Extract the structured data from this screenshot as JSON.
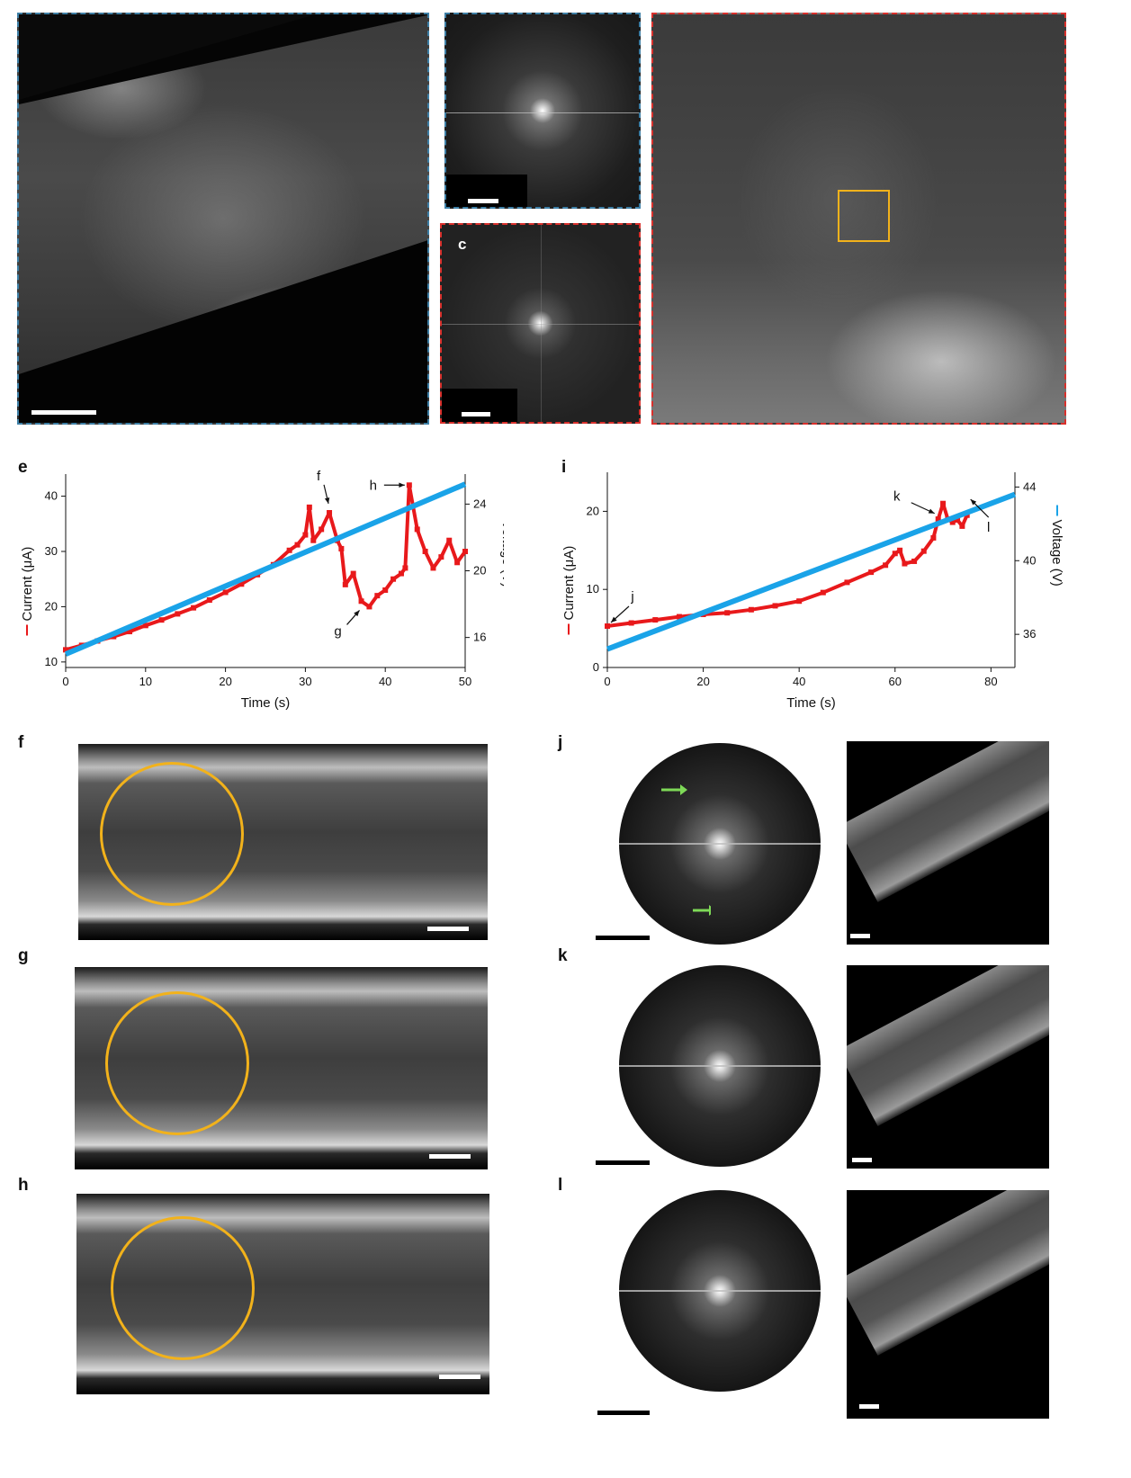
{
  "panel_labels": {
    "e": "e",
    "i": "i",
    "f": "f",
    "g": "g",
    "h": "h",
    "j": "j",
    "k": "k",
    "l": "l",
    "c": "c"
  },
  "colors": {
    "current": "#e8191b",
    "voltage": "#1aa3e8",
    "roi": "#f2b21b",
    "arrow_green": "#7ed957",
    "border_blue": "#3d7fa6",
    "border_red": "#d9302c"
  },
  "chart_data": [
    {
      "type": "line",
      "panel": "e",
      "xlabel": "Time (s)",
      "ylabel": "Current (μA)",
      "y2label": "Voltage (V)",
      "xlim": [
        0,
        50
      ],
      "ylim": [
        9,
        44
      ],
      "y2lim": [
        14.2,
        25.8
      ],
      "xticks": [
        "0",
        "10",
        "20",
        "30",
        "40",
        "50"
      ],
      "yticks": [
        "10",
        "20",
        "30",
        "40"
      ],
      "y2ticks": [
        "16",
        "20",
        "24"
      ],
      "series": [
        {
          "name": "Current",
          "axis": "left",
          "x": [
            0,
            2,
            4,
            6,
            8,
            10,
            12,
            14,
            16,
            18,
            20,
            22,
            24,
            26,
            28,
            29,
            30,
            30.5,
            31,
            32,
            33,
            34,
            34.5,
            35,
            36,
            37,
            38,
            39,
            40,
            41,
            42,
            42.5,
            43,
            44,
            45,
            46,
            47,
            48,
            49,
            50
          ],
          "y": [
            12.2,
            13,
            13.8,
            14.6,
            15.5,
            16.6,
            17.6,
            18.7,
            19.8,
            21.2,
            22.6,
            24.1,
            25.8,
            27.6,
            30.2,
            31.2,
            33,
            38,
            32,
            34,
            37,
            32,
            30.5,
            24,
            26,
            21,
            20,
            22,
            23,
            25,
            26,
            27,
            42,
            34,
            30,
            27,
            29,
            32,
            28,
            30
          ]
        },
        {
          "name": "Voltage",
          "axis": "right",
          "x": [
            0,
            50
          ],
          "y": [
            15,
            25.2
          ]
        }
      ],
      "annotations": [
        {
          "label": "f",
          "x": 33,
          "y": 38
        },
        {
          "label": "g",
          "x": 37,
          "y": 20
        },
        {
          "label": "h",
          "x": 43,
          "y": 42
        }
      ]
    },
    {
      "type": "line",
      "panel": "i",
      "xlabel": "Time (s)",
      "ylabel": "Current (μA)",
      "y2label": "Voltage (V)",
      "xlim": [
        0,
        85
      ],
      "ylim": [
        0,
        25
      ],
      "y2lim": [
        34.2,
        44.8
      ],
      "xticks": [
        "0",
        "20",
        "40",
        "60",
        "80"
      ],
      "yticks": [
        "0",
        "10",
        "20"
      ],
      "y2ticks": [
        "36",
        "40",
        "44"
      ],
      "series": [
        {
          "name": "Current",
          "axis": "left",
          "x": [
            0,
            5,
            10,
            15,
            20,
            25,
            30,
            35,
            40,
            45,
            50,
            55,
            58,
            60,
            61,
            62,
            64,
            66,
            68,
            69,
            70,
            71,
            72,
            73,
            74,
            75
          ],
          "y": [
            5.3,
            5.7,
            6.1,
            6.5,
            6.8,
            7,
            7.4,
            7.9,
            8.5,
            9.6,
            10.9,
            12.2,
            13.1,
            14.6,
            15.0,
            13.3,
            13.6,
            14.9,
            16.6,
            19,
            21,
            19,
            18.6,
            18.9,
            18.1,
            19.5
          ]
        },
        {
          "name": "Voltage",
          "axis": "right",
          "x": [
            0,
            85
          ],
          "y": [
            35.2,
            43.6
          ]
        }
      ],
      "annotations": [
        {
          "label": "j",
          "x": 0,
          "y": 5.3
        },
        {
          "label": "k",
          "x": 69,
          "y": 19.5
        },
        {
          "label": "l",
          "x": 75,
          "y": 22
        }
      ]
    }
  ]
}
